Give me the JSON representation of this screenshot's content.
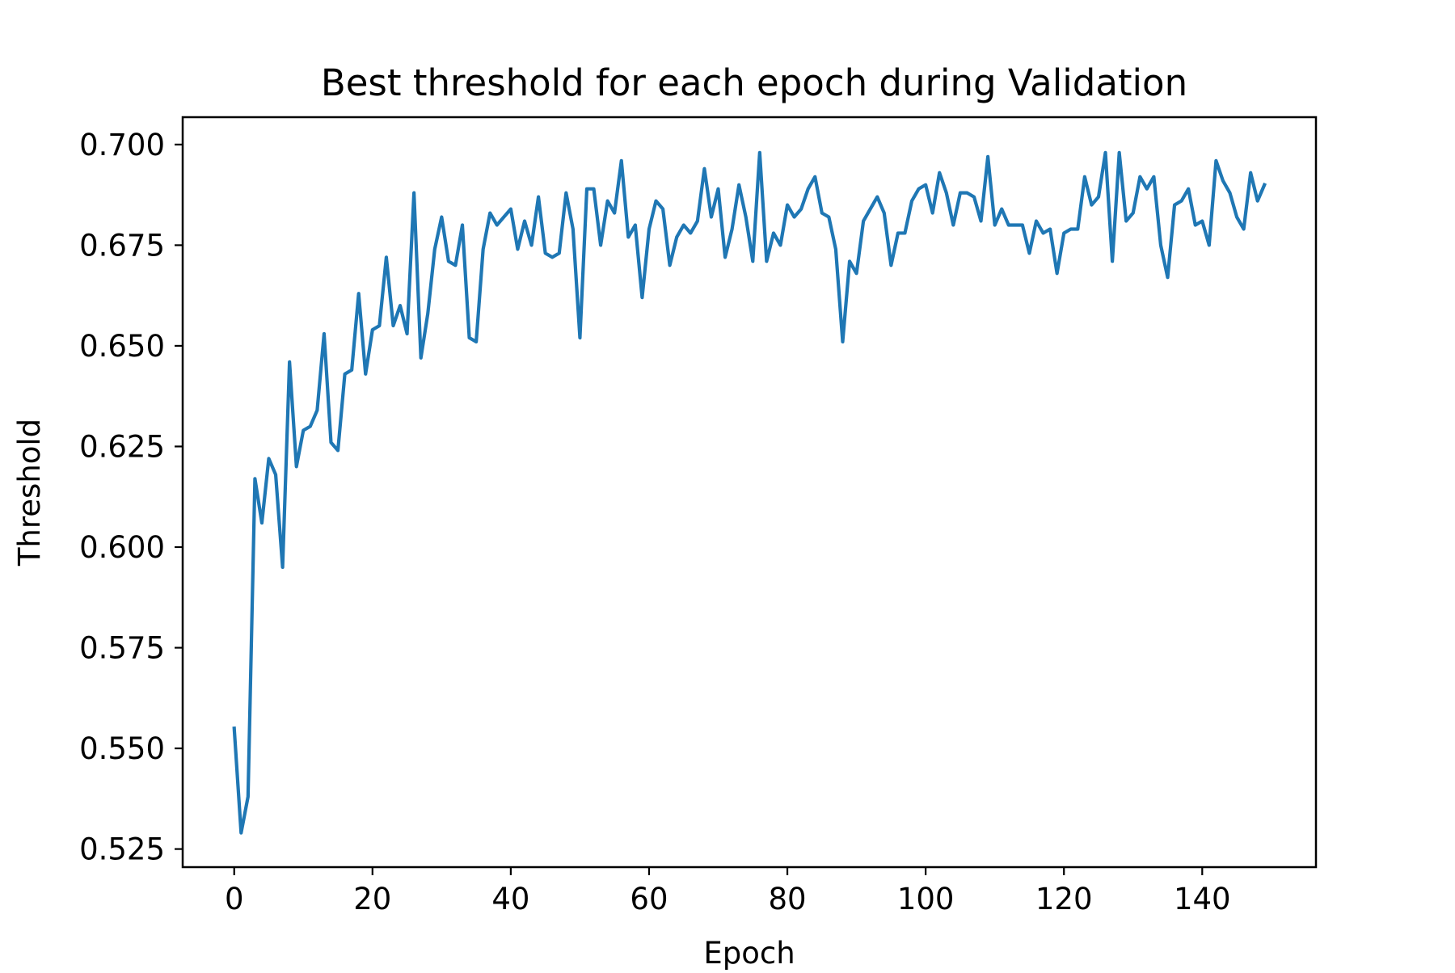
{
  "colors": {
    "line": "#1f77b4",
    "axes": "#000000",
    "background": "#ffffff"
  },
  "chart_data": {
    "type": "line",
    "title": "Best threshold for each epoch during Validation",
    "xlabel": "Epoch",
    "ylabel": "Threshold",
    "xlim": [
      -7.45,
      156.45
    ],
    "ylim": [
      0.5205,
      0.7068
    ],
    "grid": false,
    "legend": "none",
    "x_ticks": [
      0,
      20,
      40,
      60,
      80,
      100,
      120,
      140
    ],
    "x_tick_labels": [
      "0",
      "20",
      "40",
      "60",
      "80",
      "100",
      "120",
      "140"
    ],
    "y_ticks": [
      0.525,
      0.55,
      0.575,
      0.6,
      0.625,
      0.65,
      0.675,
      0.7
    ],
    "y_tick_labels": [
      "0.525",
      "0.550",
      "0.575",
      "0.600",
      "0.625",
      "0.650",
      "0.675",
      "0.700"
    ],
    "x_start": 0,
    "values": [
      0.555,
      0.529,
      0.538,
      0.617,
      0.606,
      0.622,
      0.618,
      0.595,
      0.646,
      0.62,
      0.629,
      0.63,
      0.634,
      0.653,
      0.626,
      0.624,
      0.643,
      0.644,
      0.663,
      0.643,
      0.654,
      0.655,
      0.672,
      0.655,
      0.66,
      0.653,
      0.688,
      0.647,
      0.658,
      0.674,
      0.682,
      0.671,
      0.67,
      0.68,
      0.652,
      0.651,
      0.674,
      0.683,
      0.68,
      0.682,
      0.684,
      0.674,
      0.681,
      0.675,
      0.687,
      0.673,
      0.672,
      0.673,
      0.688,
      0.679,
      0.652,
      0.689,
      0.689,
      0.675,
      0.686,
      0.683,
      0.696,
      0.677,
      0.68,
      0.662,
      0.679,
      0.686,
      0.684,
      0.67,
      0.677,
      0.68,
      0.678,
      0.681,
      0.694,
      0.682,
      0.689,
      0.672,
      0.679,
      0.69,
      0.682,
      0.671,
      0.698,
      0.671,
      0.678,
      0.675,
      0.685,
      0.682,
      0.684,
      0.689,
      0.692,
      0.683,
      0.682,
      0.674,
      0.651,
      0.671,
      0.668,
      0.681,
      0.684,
      0.687,
      0.683,
      0.67,
      0.678,
      0.678,
      0.686,
      0.689,
      0.69,
      0.683,
      0.693,
      0.688,
      0.68,
      0.688,
      0.688,
      0.687,
      0.681,
      0.697,
      0.68,
      0.684,
      0.68,
      0.68,
      0.68,
      0.673,
      0.681,
      0.678,
      0.679,
      0.668,
      0.678,
      0.679,
      0.679,
      0.692,
      0.685,
      0.687,
      0.698,
      0.671,
      0.698,
      0.681,
      0.683,
      0.692,
      0.689,
      0.692,
      0.675,
      0.667,
      0.685,
      0.686,
      0.689,
      0.68,
      0.681,
      0.675,
      0.696,
      0.691,
      0.688,
      0.682,
      0.679,
      0.693,
      0.686,
      0.69
    ]
  }
}
